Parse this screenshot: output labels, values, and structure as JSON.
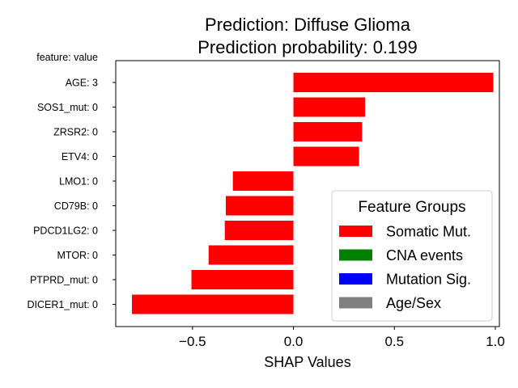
{
  "chart_data": {
    "type": "bar",
    "orientation": "horizontal",
    "title": [
      "Prediction: Diffuse Glioma",
      "Prediction probability: 0.199"
    ],
    "xlabel": "SHAP Values",
    "y_header": "feature: value",
    "xlim": [
      -0.88,
      1.02
    ],
    "xticks": [
      -0.5,
      0.0,
      0.5,
      1.0
    ],
    "xtick_labels": [
      "−0.5",
      "0.0",
      "0.5",
      "1.0"
    ],
    "categories": [
      "AGE: 3",
      "SOS1_mut: 0",
      "ZRSR2: 0",
      "ETV4: 0",
      "LMO1: 0",
      "CD79B: 0",
      "PDCD1LG2: 0",
      "MTOR: 0",
      "PTPRD_mut: 0",
      "DICER1_mut: 0"
    ],
    "values": [
      0.99,
      0.355,
      0.34,
      0.325,
      -0.3,
      -0.335,
      -0.34,
      -0.42,
      -0.505,
      -0.8
    ],
    "bar_color": "#ff0000",
    "legend": {
      "title": "Feature Groups",
      "placement": "lower-right",
      "entries": [
        {
          "label": "Somatic Mut.",
          "color": "#ff0000"
        },
        {
          "label": "CNA events",
          "color": "#008000"
        },
        {
          "label": "Mutation Sig.",
          "color": "#0000ff"
        },
        {
          "label": "Age/Sex",
          "color": "#808080"
        }
      ]
    }
  }
}
